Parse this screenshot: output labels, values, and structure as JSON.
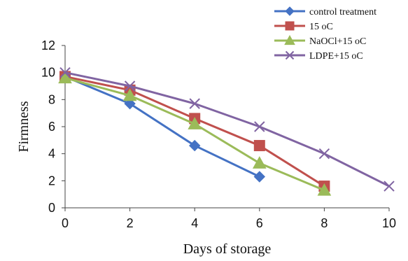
{
  "chart_data": {
    "type": "line",
    "title": "",
    "xlabel": "Days of storage",
    "ylabel": "Firmness",
    "xlim": [
      0,
      10
    ],
    "ylim": [
      0,
      12
    ],
    "xticks": [
      "0",
      "2",
      "4",
      "6",
      "8",
      "10"
    ],
    "yticks": [
      "0",
      "2",
      "4",
      "6",
      "8",
      "10",
      "12"
    ],
    "grid": false,
    "legend_position": "top-right",
    "series": [
      {
        "name": "control treatment",
        "color": "#4472C4",
        "marker": "diamond",
        "points": [
          [
            0,
            9.7
          ],
          [
            2,
            7.7
          ],
          [
            4,
            4.6
          ],
          [
            6,
            2.3
          ]
        ]
      },
      {
        "name": "15 oC",
        "color": "#C0504D",
        "marker": "square",
        "points": [
          [
            0,
            9.7
          ],
          [
            2,
            8.7
          ],
          [
            4,
            6.6
          ],
          [
            6,
            4.6
          ],
          [
            8,
            1.6
          ]
        ]
      },
      {
        "name": "NaOCl+15 oC",
        "color": "#9BBB59",
        "marker": "triangle",
        "points": [
          [
            0,
            9.6
          ],
          [
            2,
            8.3
          ],
          [
            4,
            6.2
          ],
          [
            6,
            3.3
          ],
          [
            8,
            1.3
          ]
        ]
      },
      {
        "name": "LDPE+15 oC",
        "color": "#8064A2",
        "marker": "x",
        "points": [
          [
            0,
            10.0
          ],
          [
            2,
            9.0
          ],
          [
            4,
            7.7
          ],
          [
            6,
            6.0
          ],
          [
            8,
            4.0
          ],
          [
            10,
            1.6
          ]
        ]
      }
    ]
  }
}
